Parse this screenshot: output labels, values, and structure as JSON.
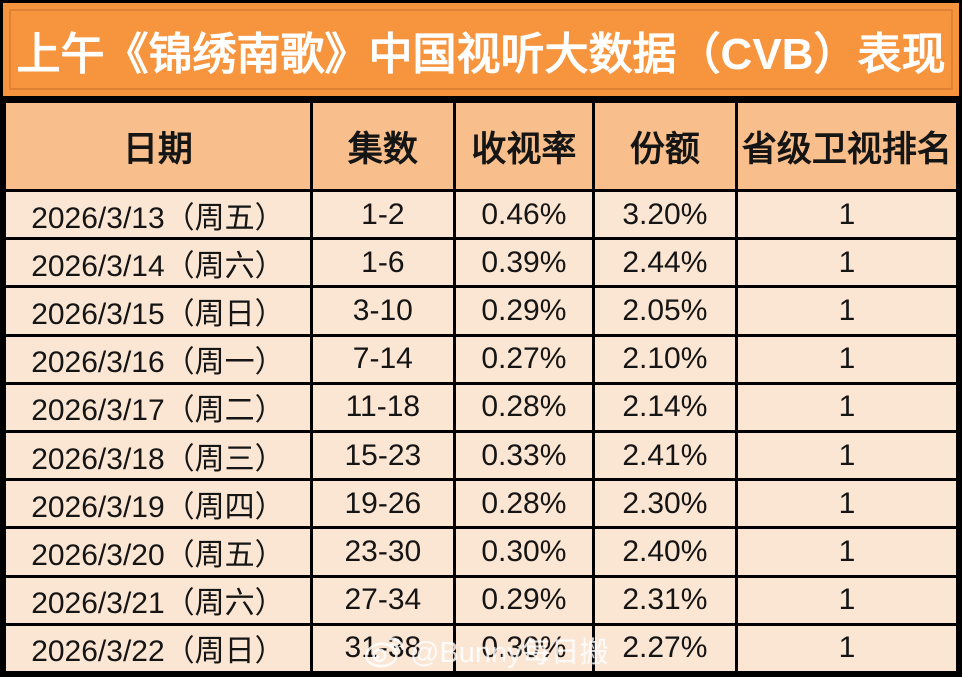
{
  "banner": {
    "title": "上午《锦绣南歌》中国视听大数据（CVB）表现"
  },
  "chart_data": {
    "type": "table",
    "title": "上午《锦绣南歌》中国视听大数据（CVB）表现",
    "columns": [
      "日期",
      "集数",
      "收视率",
      "份额",
      "省级卫视排名"
    ],
    "rows": [
      [
        "2026/3/13（周五）",
        "1-2",
        "0.46%",
        "3.20%",
        "1"
      ],
      [
        "2026/3/14（周六）",
        "1-6",
        "0.39%",
        "2.44%",
        "1"
      ],
      [
        "2026/3/15（周日）",
        "3-10",
        "0.29%",
        "2.05%",
        "1"
      ],
      [
        "2026/3/16（周一）",
        "7-14",
        "0.27%",
        "2.10%",
        "1"
      ],
      [
        "2026/3/17（周二）",
        "11-18",
        "0.28%",
        "2.14%",
        "1"
      ],
      [
        "2026/3/18（周三）",
        "15-23",
        "0.33%",
        "2.41%",
        "1"
      ],
      [
        "2026/3/19（周四）",
        "19-26",
        "0.28%",
        "2.30%",
        "1"
      ],
      [
        "2026/3/20（周五）",
        "23-30",
        "0.30%",
        "2.40%",
        "1"
      ],
      [
        "2026/3/21（周六）",
        "27-34",
        "0.29%",
        "2.31%",
        "1"
      ],
      [
        "2026/3/22（周日）",
        "31-38",
        "0.30%",
        "2.27%",
        "1"
      ]
    ]
  },
  "watermark": {
    "text": "@Bunny每日搬",
    "icon": "weibo-icon"
  },
  "colors": {
    "banner_bg": "#F7943E",
    "header_bg": "#F8BF8C",
    "row_bg": "#FBE5D3",
    "border": "#000000",
    "title_text": "#FFFFFF",
    "cell_text": "#151515"
  }
}
